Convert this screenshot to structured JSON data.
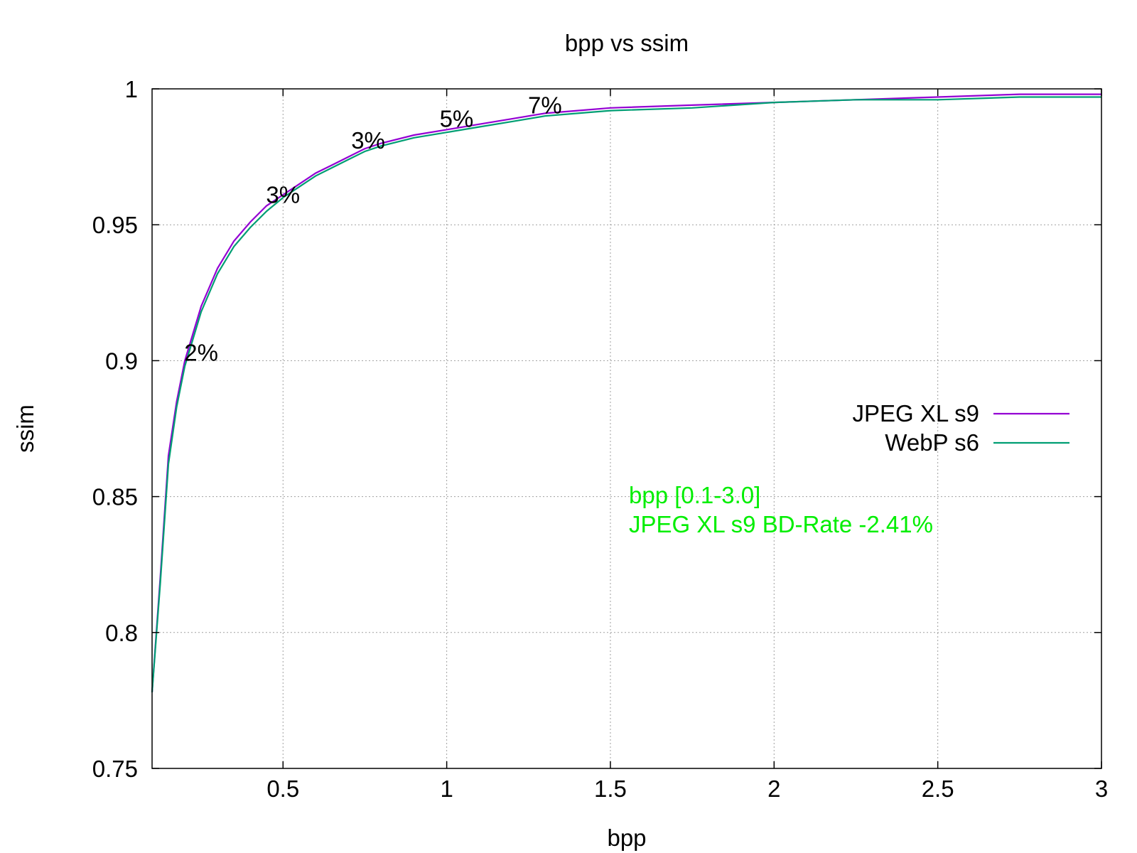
{
  "chart_data": {
    "type": "line",
    "title": "bpp vs ssim",
    "xlabel": "bpp",
    "ylabel": "ssim",
    "xlim": [
      0.1,
      3.0
    ],
    "ylim": [
      0.75,
      1.0
    ],
    "x_ticks": [
      0.5,
      1,
      1.5,
      2,
      2.5,
      3
    ],
    "x_tick_labels": [
      "0.5",
      "1",
      "1.5",
      "2",
      "2.5",
      "3"
    ],
    "y_ticks": [
      0.75,
      0.8,
      0.85,
      0.9,
      0.95,
      1.0
    ],
    "y_tick_labels": [
      "0.75",
      "0.8",
      "0.85",
      "0.9",
      "0.95",
      "1"
    ],
    "grid": true,
    "legend_position": "right-middle",
    "series": [
      {
        "name": "JPEG XL s9",
        "color": "#9400d3",
        "x": [
          0.1,
          0.125,
          0.15,
          0.175,
          0.2,
          0.25,
          0.3,
          0.35,
          0.4,
          0.45,
          0.5,
          0.55,
          0.6,
          0.65,
          0.7,
          0.75,
          0.8,
          0.9,
          1.0,
          1.1,
          1.2,
          1.3,
          1.4,
          1.5,
          1.75,
          2.0,
          2.25,
          2.5,
          2.75,
          3.0
        ],
        "y": [
          0.778,
          0.82,
          0.865,
          0.885,
          0.9,
          0.92,
          0.934,
          0.944,
          0.951,
          0.957,
          0.961,
          0.965,
          0.969,
          0.972,
          0.975,
          0.978,
          0.98,
          0.983,
          0.985,
          0.987,
          0.989,
          0.991,
          0.992,
          0.993,
          0.994,
          0.995,
          0.996,
          0.997,
          0.998,
          0.998
        ]
      },
      {
        "name": "WebP s6",
        "color": "#009e73",
        "x": [
          0.1,
          0.125,
          0.15,
          0.175,
          0.2,
          0.25,
          0.3,
          0.35,
          0.4,
          0.45,
          0.5,
          0.55,
          0.6,
          0.65,
          0.7,
          0.75,
          0.8,
          0.9,
          1.0,
          1.1,
          1.2,
          1.3,
          1.4,
          1.5,
          1.75,
          2.0,
          2.25,
          2.5,
          2.75,
          3.0
        ],
        "y": [
          0.778,
          0.818,
          0.862,
          0.883,
          0.898,
          0.918,
          0.932,
          0.942,
          0.949,
          0.955,
          0.96,
          0.964,
          0.968,
          0.971,
          0.974,
          0.977,
          0.979,
          0.982,
          0.984,
          0.986,
          0.988,
          0.99,
          0.991,
          0.992,
          0.993,
          0.995,
          0.996,
          0.996,
          0.997,
          0.997
        ]
      }
    ],
    "annotations": [
      {
        "text": "2%",
        "x": 0.25,
        "y": 0.9
      },
      {
        "text": "3%",
        "x": 0.5,
        "y": 0.958
      },
      {
        "text": "3%",
        "x": 0.76,
        "y": 0.978
      },
      {
        "text": "5%",
        "x": 1.03,
        "y": 0.986
      },
      {
        "text": "7%",
        "x": 1.3,
        "y": 0.991
      }
    ],
    "note": {
      "color": "#00ee00",
      "lines": [
        "bpp [0.1-3.0]",
        "JPEG XL s9 BD-Rate -2.41%"
      ]
    }
  }
}
